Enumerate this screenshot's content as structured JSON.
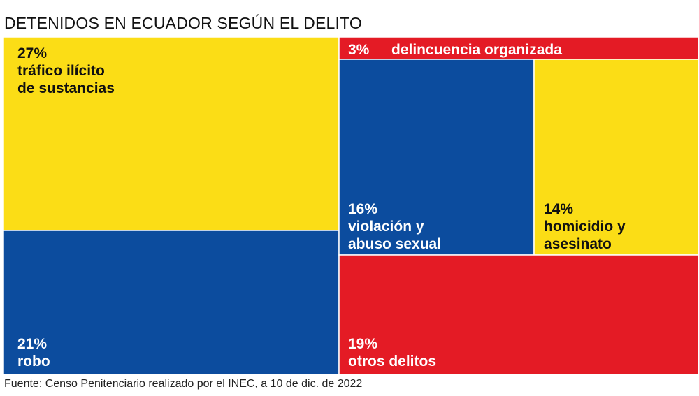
{
  "title": "DETENIDOS EN ECUADOR SEGÚN EL DELITO",
  "source": "Fuente: Censo Penitenciario realizado por el INEC, a 10 de dic. de 2022",
  "colors": {
    "yellow": "#fbdd16",
    "blue": "#0c4c9e",
    "red": "#e41b25",
    "dark_text": "#111111",
    "light_text": "#ffffff"
  },
  "chart_data": {
    "type": "treemap",
    "unit": "%",
    "items": [
      {
        "id": "trafico",
        "value": 27,
        "value_label": "27%",
        "label_lines": [
          "tráfico ilícito",
          "de sustancias"
        ],
        "color": "yellow"
      },
      {
        "id": "robo",
        "value": 21,
        "value_label": "21%",
        "label_lines": [
          "robo"
        ],
        "color": "blue"
      },
      {
        "id": "delincuencia",
        "value": 3,
        "value_label": "3%",
        "label_lines": [
          "delincuencia organizada"
        ],
        "color": "red"
      },
      {
        "id": "violacion",
        "value": 16,
        "value_label": "16%",
        "label_lines": [
          "violación y",
          "abuso sexual"
        ],
        "color": "blue"
      },
      {
        "id": "homicidio",
        "value": 14,
        "value_label": "14%",
        "label_lines": [
          "homicidio y",
          "asesinato"
        ],
        "color": "yellow"
      },
      {
        "id": "otros",
        "value": 19,
        "value_label": "19%",
        "label_lines": [
          "otros delitos"
        ],
        "color": "red"
      }
    ]
  }
}
